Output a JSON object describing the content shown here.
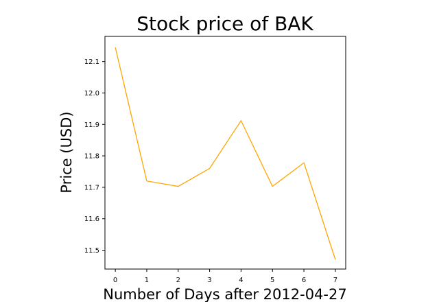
{
  "chart_data": {
    "type": "line",
    "title": "Stock price of BAK",
    "xlabel": "Number of Days after 2012-04-27",
    "ylabel": "Price (USD)",
    "x": [
      0,
      1,
      2,
      3,
      4,
      5,
      6,
      7
    ],
    "series": [
      {
        "values": [
          12.145,
          11.72,
          11.703,
          11.76,
          11.912,
          11.703,
          11.778,
          11.47
        ],
        "color": "#ffa500"
      }
    ],
    "xlim": [
      -0.33,
      7.33
    ],
    "ylim": [
      11.44,
      12.18
    ],
    "xticks": [
      0,
      1,
      2,
      3,
      4,
      5,
      6,
      7
    ],
    "yticks": [
      11.5,
      11.6,
      11.7,
      11.8,
      11.9,
      12.0,
      12.1
    ],
    "grid": false
  }
}
